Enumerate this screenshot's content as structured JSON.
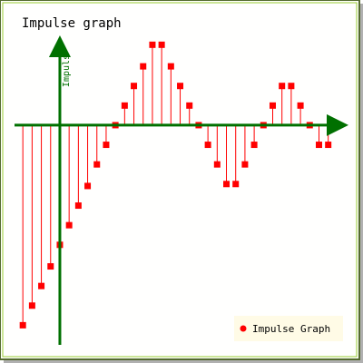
{
  "chart_data": {
    "type": "impulse",
    "title": "Impulse graph",
    "ylabel": "Impuls",
    "xlabel": "",
    "legend": {
      "position": "bottom-right",
      "entries": [
        "Impulse Graph"
      ]
    },
    "series": [
      {
        "name": "Impulse Graph",
        "color": "#ff0000",
        "x": [
          -4,
          -3,
          -2,
          -1,
          0,
          1,
          2,
          3,
          4,
          5,
          6,
          7,
          8,
          9,
          10,
          11,
          12,
          13,
          14,
          15,
          16,
          17,
          18,
          19,
          20,
          21,
          22,
          23,
          24,
          25,
          26,
          27,
          28,
          29,
          30
        ],
        "values": [
          -10.2,
          -9.2,
          -8.2,
          -7.2,
          -6.1,
          -5.1,
          -4.1,
          -3.1,
          -2.0,
          -1.0,
          0.0,
          1.0,
          2.0,
          3.0,
          4.1,
          4.1,
          3.0,
          2.0,
          1.0,
          0.0,
          -1.0,
          -2.0,
          -3.0,
          -3.0,
          -2.0,
          -1.0,
          0.0,
          1.0,
          2.0,
          2.0,
          1.0,
          0.0,
          -1.0,
          -1.0,
          0.0
        ]
      }
    ],
    "xlim": [
      -4.9,
      30.6
    ],
    "ylim": [
      -11.2,
      4.3
    ],
    "colors": {
      "background": "#fffffe",
      "outer_border": "#556b2f",
      "inner_border": "#9acd32",
      "shadow": "#b0b0b0",
      "axis": "#007000",
      "impulse": "#ff0000",
      "legend_bg": "#fffbe6",
      "title": "#000000"
    }
  }
}
